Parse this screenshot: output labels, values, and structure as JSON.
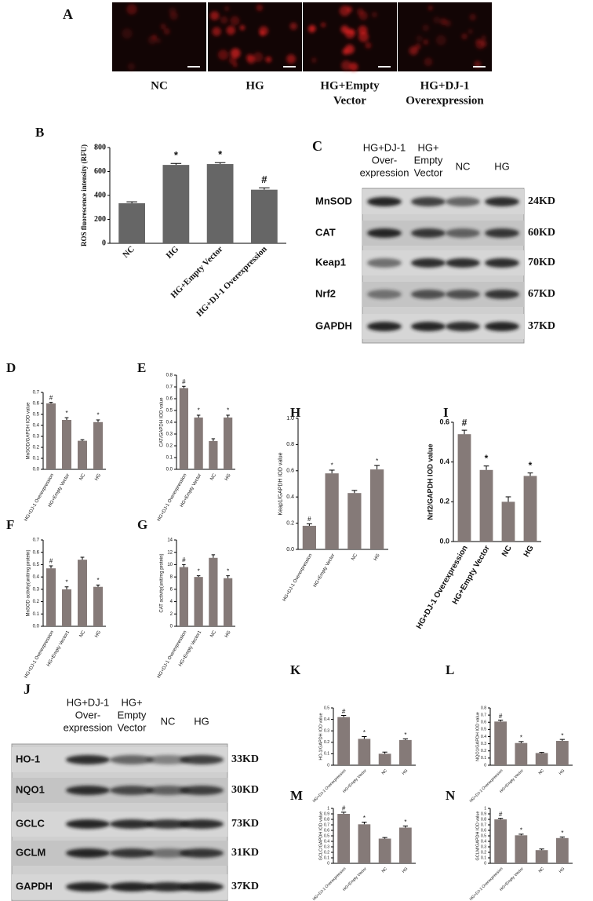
{
  "panel_a": {
    "letter": "A",
    "labels": [
      [
        "NC"
      ],
      [
        "HG"
      ],
      [
        "HG+Empty",
        "Vector"
      ],
      [
        "HG+DJ-1",
        "Overexpression"
      ]
    ]
  },
  "panel_c": {
    "letter": "C",
    "lanes": [
      [
        "HG+DJ-1",
        "Over-",
        "expression"
      ],
      [
        "HG+",
        "Empty",
        "Vector"
      ],
      [
        "NC"
      ],
      [
        "HG"
      ]
    ],
    "proteins": [
      "MnSOD",
      "CAT",
      "Keap1",
      "Nrf2",
      "GAPDH"
    ],
    "sizes": [
      "24KD",
      "60KD",
      "70KD",
      "67KD",
      "37KD"
    ]
  },
  "panel_j": {
    "letter": "J",
    "lanes": [
      [
        "HG+DJ-1",
        "Over-",
        "expression"
      ],
      [
        "HG+",
        "Empty",
        "Vector"
      ],
      [
        "NC"
      ],
      [
        "HG"
      ]
    ],
    "proteins": [
      "HO-1",
      "NQO1",
      "GCLC",
      "GCLM",
      "GAPDH"
    ],
    "sizes": [
      "33KD",
      "30KD",
      "73KD",
      "31KD",
      "37KD"
    ]
  },
  "chart_data": [
    {
      "type": "bar",
      "letter": "B",
      "y_label": "ROS fluorescence intensity (RFU)",
      "categories": [
        "NC",
        "HG",
        "HG+Empty Vector",
        "HG+DJ-1 Overexpression"
      ],
      "values": [
        335,
        655,
        662,
        448
      ],
      "errors": [
        12,
        12,
        12,
        15
      ],
      "markers": [
        null,
        "*",
        "*",
        "#"
      ],
      "color": "#666666",
      "ylim": [
        0,
        800
      ],
      "yticks": [
        0,
        200,
        400,
        600,
        800
      ]
    },
    {
      "type": "bar",
      "letter": "D",
      "y_label": "MnSOD/GAPDH IOD value",
      "categories": [
        "HG+DJ-1 Overexpression",
        "HG+Empty Vector",
        "NC",
        "HG"
      ],
      "values": [
        0.6,
        0.45,
        0.26,
        0.43
      ],
      "errors": [
        0.01,
        0.02,
        0.01,
        0.02
      ],
      "markers": [
        "#",
        "*",
        null,
        "*"
      ],
      "color": "#857a78",
      "ylim": [
        0,
        0.7
      ],
      "yticks": [
        {
          "value": 0,
          "label": "0.0"
        },
        0.1,
        0.2,
        0.3,
        0.4,
        0.5,
        0.6,
        0.7
      ]
    },
    {
      "type": "bar",
      "letter": "E",
      "y_label": "CAT/GAPDH IOD value",
      "categories": [
        "HG+DJ-1 Overexpression",
        "HG+Empty Vector",
        "NC",
        "HG"
      ],
      "values": [
        0.69,
        0.44,
        0.24,
        0.44
      ],
      "errors": [
        0.015,
        0.02,
        0.02,
        0.02
      ],
      "markers": [
        "#",
        "*",
        null,
        "*"
      ],
      "color": "#857a78",
      "ylim": [
        0,
        0.8
      ],
      "yticks": [
        {
          "value": 0,
          "label": "0.0"
        },
        0.1,
        0.2,
        0.3,
        0.4,
        0.5,
        0.6,
        0.7,
        0.8
      ]
    },
    {
      "type": "bar",
      "letter": "F",
      "y_label": "MnSOD activity(unit/mg protein)",
      "categories": [
        "HG+DJ-1 Overexpression",
        "HG+Empty Vector1",
        "NC",
        "HG"
      ],
      "values": [
        0.47,
        0.3,
        0.54,
        0.32
      ],
      "errors": [
        0.02,
        0.02,
        0.02,
        0.015
      ],
      "markers": [
        "#",
        "*",
        null,
        "*"
      ],
      "color": "#857a78",
      "ylim": [
        0,
        0.7
      ],
      "yticks": [
        {
          "value": 0,
          "label": "0.0"
        },
        0.1,
        0.2,
        0.3,
        0.4,
        0.5,
        0.6,
        0.7
      ]
    },
    {
      "type": "bar",
      "letter": "G",
      "y_label": "CAT activity(unit/mg protein)",
      "categories": [
        "HG+DJ-1 Overexpression",
        "HG+Empty Vector1",
        "NC",
        "HG"
      ],
      "values": [
        9.6,
        8.0,
        11.1,
        7.8
      ],
      "errors": [
        0.4,
        0.2,
        0.5,
        0.4
      ],
      "markers": [
        "#",
        "*",
        null,
        "*"
      ],
      "color": "#857a78",
      "ylim": [
        0,
        14
      ],
      "yticks": [
        0,
        2,
        4,
        6,
        8,
        10,
        12,
        14
      ]
    },
    {
      "type": "bar",
      "letter": "H",
      "y_label": "Keap1/GAPDH IOD value",
      "categories": [
        "HG+DJ-1 Overexpression",
        "HG+Empty Vector",
        "NC",
        "HG"
      ],
      "values": [
        0.18,
        0.58,
        0.43,
        0.61
      ],
      "errors": [
        0.015,
        0.025,
        0.02,
        0.03
      ],
      "markers": [
        "#",
        "*",
        null,
        "*"
      ],
      "color": "#857a78",
      "ylim": [
        0,
        1.0
      ],
      "yticks": [
        {
          "value": 0,
          "label": "0.0"
        },
        0.2,
        0.4,
        0.6,
        0.8,
        {
          "value": 1,
          "label": "1.0"
        }
      ]
    },
    {
      "type": "bar",
      "letter": "I",
      "y_label": "Nrf2/GAPDH IOD value",
      "categories": [
        "HG+DJ-1 Overexpression",
        "HG+Empty Vector",
        "NC",
        "HG"
      ],
      "values": [
        0.54,
        0.36,
        0.2,
        0.33
      ],
      "errors": [
        0.02,
        0.02,
        0.025,
        0.015
      ],
      "markers": [
        "#",
        "*",
        null,
        "*"
      ],
      "color": "#857a78",
      "ylim": [
        0,
        0.6
      ],
      "yticks": [
        {
          "value": 0,
          "label": "0.0"
        },
        0.2,
        0.4,
        0.6
      ]
    },
    {
      "type": "bar",
      "letter": "K",
      "y_label": "HO-1/GAPDH IOD value",
      "categories": [
        "HG+DJ-1 Overexpression",
        "HG+Empty Vector",
        "NC",
        "HG"
      ],
      "values": [
        0.42,
        0.23,
        0.1,
        0.22
      ],
      "errors": [
        0.015,
        0.02,
        0.015,
        0.01
      ],
      "markers": [
        "#",
        "*",
        null,
        "*"
      ],
      "color": "#857a78",
      "ylim": [
        0,
        0.5
      ],
      "yticks": [
        0,
        0.1,
        0.2,
        0.3,
        0.4,
        0.5
      ]
    },
    {
      "type": "bar",
      "letter": "L",
      "y_label": "NQO1/GAPDH IOD value",
      "categories": [
        "HG+DJ-1 Overexpression",
        "HG+Empty Vector",
        "NC",
        "HG"
      ],
      "values": [
        0.61,
        0.31,
        0.17,
        0.34
      ],
      "errors": [
        0.02,
        0.02,
        0.01,
        0.02
      ],
      "markers": [
        "#",
        "*",
        null,
        "*"
      ],
      "color": "#857a78",
      "ylim": [
        0,
        0.8
      ],
      "yticks": [
        0,
        0.1,
        0.2,
        0.3,
        0.4,
        0.5,
        0.6,
        0.7,
        0.8
      ]
    },
    {
      "type": "bar",
      "letter": "M",
      "y_label": "GCLC/GAPDH IOD value",
      "categories": [
        "HG+DJ-1 Overexpression",
        "HG+Empty Vector",
        "NC",
        "HG"
      ],
      "values": [
        0.9,
        0.71,
        0.45,
        0.65
      ],
      "errors": [
        0.03,
        0.04,
        0.02,
        0.03
      ],
      "markers": [
        "#",
        "*",
        null,
        "*"
      ],
      "color": "#857a78",
      "ylim": [
        0,
        1
      ],
      "yticks": [
        0,
        0.1,
        0.2,
        0.3,
        0.4,
        0.5,
        0.6,
        0.7,
        0.8,
        0.9,
        1
      ]
    },
    {
      "type": "bar",
      "letter": "N",
      "y_label": "GCLM/GAPDH IOD value",
      "categories": [
        "HG+DJ-1 Overexpression",
        "HG+Empty Vector",
        "NC",
        "HG"
      ],
      "values": [
        0.8,
        0.51,
        0.24,
        0.46
      ],
      "errors": [
        0.02,
        0.02,
        0.02,
        0.02
      ],
      "markers": [
        "#",
        "*",
        null,
        "*"
      ],
      "color": "#857a78",
      "ylim": [
        0,
        1
      ],
      "yticks": [
        0,
        0.1,
        0.2,
        0.3,
        0.4,
        0.5,
        0.6,
        0.7,
        0.8,
        0.9,
        1
      ]
    }
  ]
}
